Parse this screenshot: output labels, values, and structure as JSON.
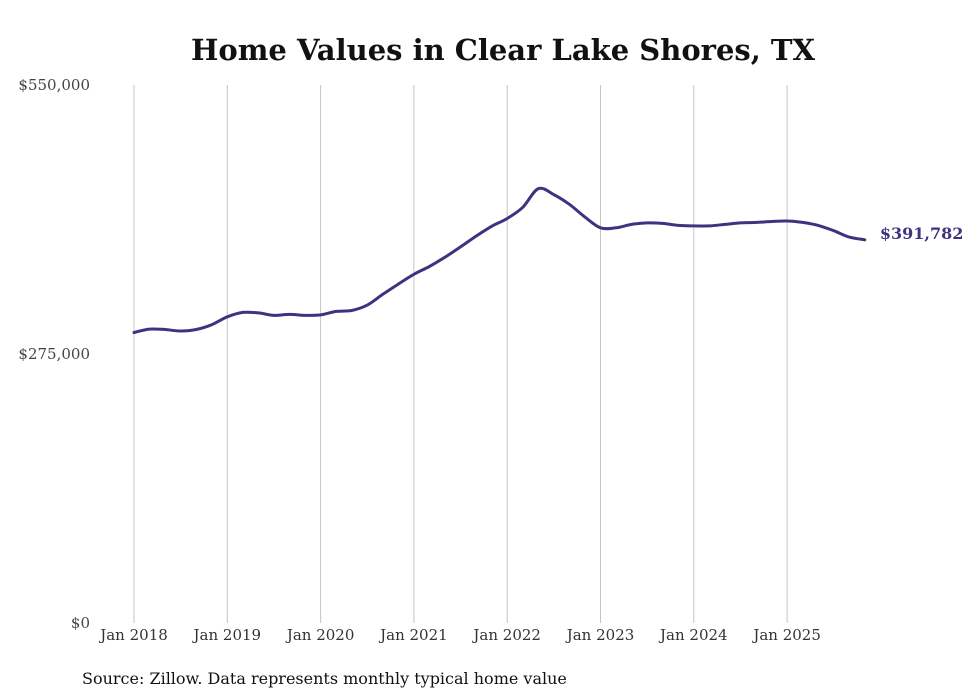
{
  "chart_data": {
    "type": "line",
    "title": "Home Values in Clear Lake Shores, TX",
    "source_note": "Source: Zillow. Data represents monthly typical home value",
    "ylim": [
      0,
      550000
    ],
    "y_ticks": [
      "$0",
      "$275,000",
      "$550,000"
    ],
    "x_ticks": [
      "Jan 2018",
      "Jan 2019",
      "Jan 2020",
      "Jan 2021",
      "Jan 2022",
      "Jan 2023",
      "Jan 2024",
      "Jan 2025"
    ],
    "grid": "vertical",
    "line_color": "#3d3480",
    "end_label": "$391,782",
    "series": [
      {
        "points": [
          [
            "2018-01",
            297000
          ],
          [
            "2018-03",
            300500
          ],
          [
            "2018-05",
            300000
          ],
          [
            "2018-07",
            298500
          ],
          [
            "2018-09",
            300000
          ],
          [
            "2018-11",
            305000
          ],
          [
            "2019-01",
            313000
          ],
          [
            "2019-03",
            317500
          ],
          [
            "2019-05",
            317000
          ],
          [
            "2019-07",
            314500
          ],
          [
            "2019-09",
            315500
          ],
          [
            "2019-11",
            314500
          ],
          [
            "2020-01",
            315000
          ],
          [
            "2020-03",
            318500
          ],
          [
            "2020-05",
            319500
          ],
          [
            "2020-07",
            325000
          ],
          [
            "2020-09",
            336000
          ],
          [
            "2020-11",
            346500
          ],
          [
            "2021-01",
            356500
          ],
          [
            "2021-03",
            364500
          ],
          [
            "2021-05",
            374000
          ],
          [
            "2021-07",
            384500
          ],
          [
            "2021-09",
            395500
          ],
          [
            "2021-11",
            405500
          ],
          [
            "2022-01",
            413500
          ],
          [
            "2022-03",
            425000
          ],
          [
            "2022-05",
            444000
          ],
          [
            "2022-07",
            438000
          ],
          [
            "2022-09",
            428000
          ],
          [
            "2022-11",
            415000
          ],
          [
            "2023-01",
            404000
          ],
          [
            "2023-03",
            404000
          ],
          [
            "2023-05",
            407500
          ],
          [
            "2023-07",
            409000
          ],
          [
            "2023-09",
            408500
          ],
          [
            "2023-11",
            406500
          ],
          [
            "2024-01",
            406000
          ],
          [
            "2024-03",
            406000
          ],
          [
            "2024-05",
            407500
          ],
          [
            "2024-07",
            409000
          ],
          [
            "2024-09",
            409500
          ],
          [
            "2024-11",
            410500
          ],
          [
            "2025-01",
            411000
          ],
          [
            "2025-03",
            409500
          ],
          [
            "2025-05",
            406500
          ],
          [
            "2025-07",
            401000
          ],
          [
            "2025-09",
            394500
          ],
          [
            "2025-11",
            391782
          ]
        ]
      }
    ]
  }
}
